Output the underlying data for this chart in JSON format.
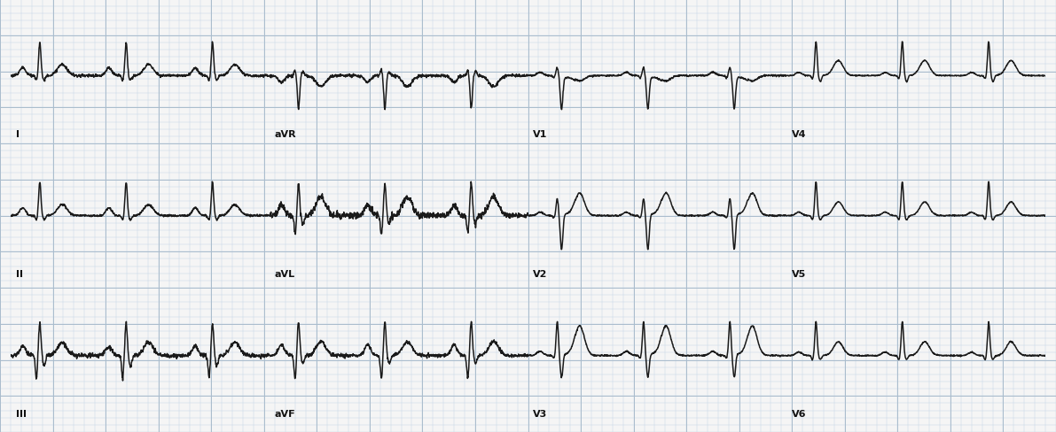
{
  "fig_width": 11.91,
  "fig_height": 4.89,
  "dpi": 100,
  "bg_color": "#f5f5f5",
  "grid_minor_color": "#c5d5e5",
  "grid_major_color": "#aabccc",
  "ecg_color": "#1a1a1a",
  "ecg_linewidth": 1.1,
  "label_fontsize": 8,
  "label_color": "#111111",
  "rows": 3,
  "cols": 4,
  "leads": [
    [
      "I",
      "aVR",
      "V1",
      "V4"
    ],
    [
      "II",
      "aVL",
      "V2",
      "V5"
    ],
    [
      "III",
      "aVF",
      "V3",
      "V6"
    ]
  ],
  "lead_morphology": {
    "I": {
      "p": 0.07,
      "q": -0.04,
      "r": 0.3,
      "s": -0.04,
      "t": 0.1,
      "st": 0.0,
      "baseline": 0.0
    },
    "II": {
      "p": 0.09,
      "q": -0.05,
      "r": 0.4,
      "s": -0.05,
      "t": 0.13,
      "st": 0.0,
      "baseline": 0.0
    },
    "III": {
      "p": 0.05,
      "q": -0.12,
      "r": 0.18,
      "s": -0.06,
      "t": 0.07,
      "st": 0.0,
      "baseline": 0.0
    },
    "aVR": {
      "p": -0.05,
      "q": 0.04,
      "r": -0.25,
      "s": 0.03,
      "t": -0.08,
      "st": 0.0,
      "baseline": 0.0
    },
    "aVL": {
      "p": 0.04,
      "q": -0.07,
      "r": 0.12,
      "s": -0.03,
      "t": 0.07,
      "st": 0.0,
      "baseline": 0.0
    },
    "aVF": {
      "p": 0.07,
      "q": -0.15,
      "r": 0.22,
      "s": -0.05,
      "t": 0.09,
      "st": 0.0,
      "baseline": 0.0
    },
    "V1": {
      "p": 0.05,
      "q": -0.03,
      "r": 0.12,
      "s": -0.5,
      "t": -0.08,
      "st": -0.05,
      "baseline": 0.0
    },
    "V2": {
      "p": 0.06,
      "q": -0.04,
      "r": 0.3,
      "s": -0.6,
      "t": 0.4,
      "st": 0.05,
      "baseline": 0.0
    },
    "V3": {
      "p": 0.07,
      "q": -0.04,
      "r": 0.55,
      "s": -0.35,
      "t": 0.48,
      "st": 0.05,
      "baseline": 0.0
    },
    "V4": {
      "p": 0.08,
      "q": -0.08,
      "r": 0.85,
      "s": -0.15,
      "t": 0.38,
      "st": 0.02,
      "baseline": 0.0
    },
    "V5": {
      "p": 0.08,
      "q": -0.1,
      "r": 0.8,
      "s": -0.1,
      "t": 0.32,
      "st": 0.0,
      "baseline": 0.0
    },
    "V6": {
      "p": 0.07,
      "q": -0.09,
      "r": 0.7,
      "s": -0.08,
      "t": 0.28,
      "st": 0.0,
      "baseline": 0.0
    }
  }
}
